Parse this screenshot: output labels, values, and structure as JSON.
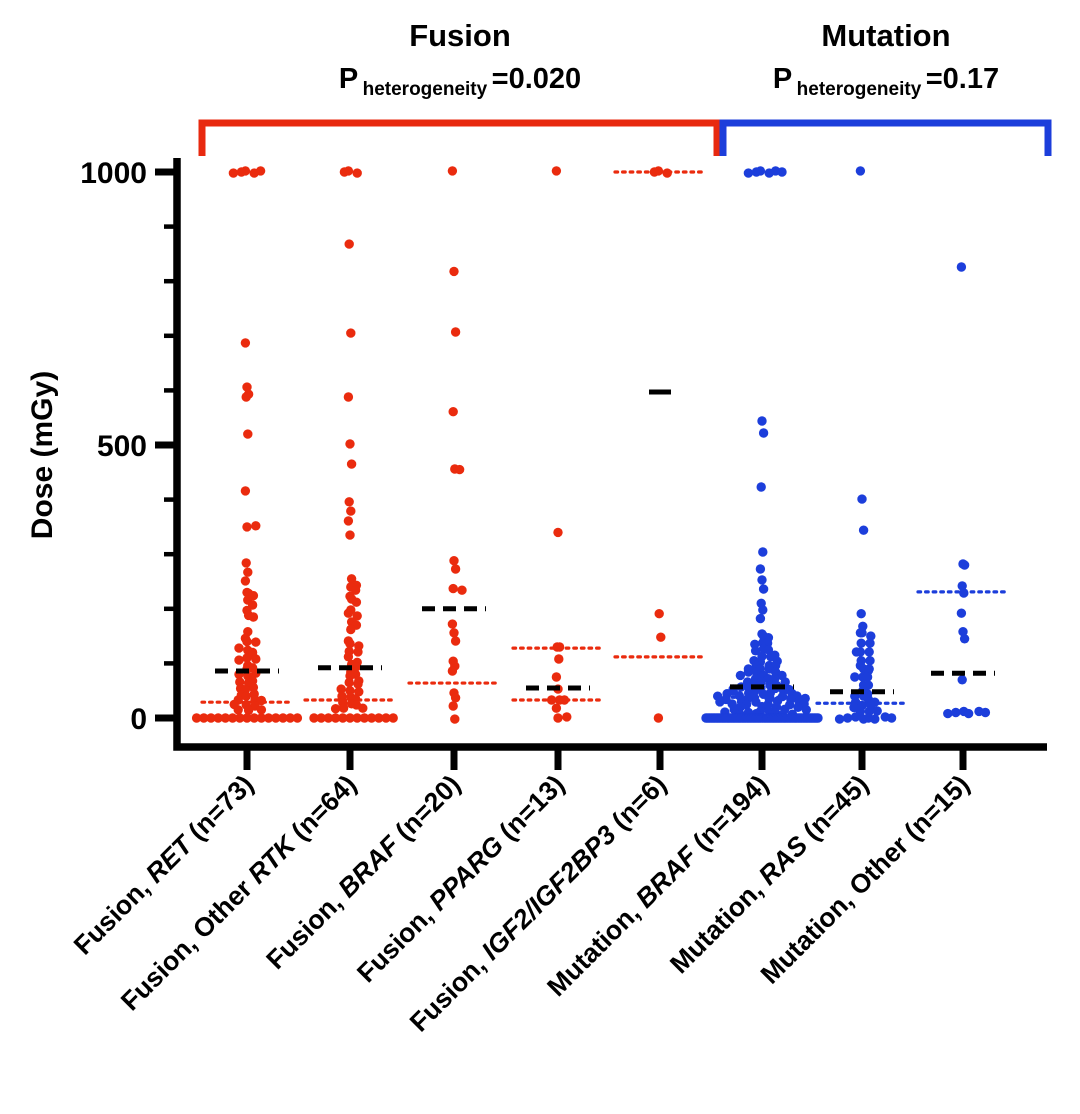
{
  "figure": {
    "background": "#ffffff",
    "axis_color": "#000000"
  },
  "chart_data": {
    "type": "scatter",
    "subtype": "beeswarm-dot-plot",
    "ylabel": "Dose (mGy)",
    "ylim": [
      0,
      1000
    ],
    "yticks": [
      "0",
      "500",
      "1000"
    ],
    "ytick_values": [
      0,
      500,
      1000
    ],
    "minor_tick_step": 100,
    "grid": false,
    "legend": "none",
    "groups": [
      {
        "title": "Fusion",
        "p_prefix": "P",
        "p_subscript": "heterogeneity",
        "p_equals_value": "=0.020",
        "color": "#E8290F",
        "category_indexes": [
          0,
          1,
          2,
          3,
          4
        ]
      },
      {
        "title": "Mutation",
        "p_prefix": "P",
        "p_subscript": "heterogeneity",
        "p_equals_value": "=0.17",
        "color": "#1C3EDB",
        "category_indexes": [
          5,
          6,
          7
        ]
      }
    ],
    "categories": [
      {
        "label": "Fusion, RET (n=73)",
        "label_parts": [
          {
            "text": "Fusion, ",
            "italic": false
          },
          {
            "text": "RET",
            "italic": true
          },
          {
            "text": " (n=73)",
            "italic": false
          }
        ],
        "n": 73,
        "color": "#EA2B0E",
        "group": "Fusion",
        "median_dashed": 86,
        "quartiles_dotted": [
          29
        ],
        "median_short": false,
        "values": [
          [
            1000,
            5
          ],
          687,
          604,
          595,
          588,
          518,
          418,
          [
            350,
            2
          ],
          286,
          267,
          249,
          232,
          228,
          222,
          218,
          207,
          195,
          190,
          185,
          156,
          148,
          140,
          137,
          130,
          124,
          118,
          112,
          108,
          104,
          98,
          92,
          88,
          84,
          80,
          75,
          70,
          66,
          62,
          58,
          54,
          50,
          46,
          42,
          38,
          35,
          33,
          30,
          27,
          24,
          20,
          17,
          15,
          12,
          [
            0,
            15
          ]
        ]
      },
      {
        "label": "Fusion, Other RTK (n=64)",
        "label_parts": [
          {
            "text": "Fusion, Other ",
            "italic": false
          },
          {
            "text": "RTK",
            "italic": true
          },
          {
            "text": " (n=64)",
            "italic": false
          }
        ],
        "n": 64,
        "color": "#EA2B0E",
        "group": "Fusion",
        "median_dashed": 92,
        "quartiles_dotted": [
          33
        ],
        "median_short": false,
        "values": [
          [
            1000,
            3
          ],
          866,
          707,
          588,
          500,
          467,
          396,
          377,
          363,
          335,
          253,
          245,
          240,
          232,
          225,
          218,
          210,
          200,
          192,
          185,
          178,
          170,
          160,
          143,
          136,
          130,
          124,
          121,
          110,
          104,
          98,
          92,
          86,
          80,
          75,
          70,
          65,
          60,
          55,
          50,
          46,
          42,
          38,
          33,
          30,
          26,
          22,
          20,
          18,
          15,
          [
            0,
            12
          ]
        ]
      },
      {
        "label": "Fusion, BRAF (n=20)",
        "label_parts": [
          {
            "text": "Fusion, ",
            "italic": false
          },
          {
            "text": "BRAF",
            "italic": true
          },
          {
            "text": " (n=20)",
            "italic": false
          }
        ],
        "n": 20,
        "color": "#EA2B0E",
        "group": "Fusion",
        "median_dashed": 200,
        "quartiles_dotted": [
          64
        ],
        "median_short": false,
        "values": [
          1000,
          820,
          707,
          559,
          458,
          455,
          286,
          275,
          237,
          232,
          174,
          156,
          139,
          106,
          95,
          84,
          48,
          37,
          20,
          0
        ]
      },
      {
        "label": "Fusion, PPARG (n=13)",
        "label_parts": [
          {
            "text": "Fusion, ",
            "italic": false
          },
          {
            "text": "PPARG",
            "italic": true
          },
          {
            "text": " (n=13)",
            "italic": false
          }
        ],
        "n": 13,
        "color": "#EA2B0E",
        "group": "Fusion",
        "median_dashed": 55,
        "quartiles_dotted": [
          33,
          128
        ],
        "median_short": false,
        "values": [
          1000,
          342,
          130,
          128,
          110,
          75,
          51,
          35,
          33,
          31,
          20,
          [
            0,
            2
          ]
        ]
      },
      {
        "label": "Fusion, IGF2/IGF2BP3 (n=6)",
        "label_parts": [
          {
            "text": "Fusion, ",
            "italic": false
          },
          {
            "text": "IGF2/IGF2BP3",
            "italic": true
          },
          {
            "text": " (n=6)",
            "italic": false
          }
        ],
        "n": 6,
        "color": "#EA2B0E",
        "group": "Fusion",
        "median_dashed": 597,
        "quartiles_dotted": [
          112,
          1000
        ],
        "median_short": true,
        "values": [
          [
            1000,
            3
          ],
          189,
          150,
          0
        ]
      },
      {
        "label": "Mutation, BRAF (n=194)",
        "label_parts": [
          {
            "text": "Mutation, ",
            "italic": false
          },
          {
            "text": "BRAF",
            "italic": true
          },
          {
            "text": " (n=194)",
            "italic": false
          }
        ],
        "n": 194,
        "color": "#1C3EDB",
        "group": "Mutation",
        "median_dashed": 57,
        "quartiles_dotted": [
          38
        ],
        "median_short": false,
        "values": [
          [
            1000,
            6
          ],
          542,
          524,
          423,
          302,
          275,
          253,
          234,
          212,
          198,
          180,
          156,
          150,
          145,
          140,
          137,
          133,
          129,
          125,
          121,
          117,
          113,
          110,
          107,
          104,
          101,
          98,
          96,
          94,
          92,
          90,
          88,
          86,
          84,
          82,
          80,
          78,
          76,
          74,
          72,
          70,
          68,
          66,
          64,
          62,
          60,
          58,
          57,
          56,
          55,
          54,
          53,
          52,
          51,
          50,
          49,
          48,
          47,
          46,
          45,
          44,
          43,
          42,
          41,
          40,
          39,
          38,
          37,
          36,
          35,
          34,
          33,
          32,
          31,
          30,
          29,
          28,
          27,
          26,
          25,
          24,
          23,
          22,
          21,
          20,
          19,
          18,
          17,
          16,
          15,
          12,
          11,
          10,
          9,
          8,
          7,
          6,
          5,
          [
            0,
            91
          ]
        ]
      },
      {
        "label": "Mutation, RAS (n=45)",
        "label_parts": [
          {
            "text": "Mutation, ",
            "italic": false
          },
          {
            "text": "RAS",
            "italic": true
          },
          {
            "text": " (n=45)",
            "italic": false
          }
        ],
        "n": 45,
        "color": "#1C3EDB",
        "group": "Mutation",
        "median_dashed": 48,
        "quartiles_dotted": [
          27
        ],
        "median_short": false,
        "values": [
          1000,
          403,
          344,
          189,
          170,
          156,
          154,
          152,
          137,
          135,
          123,
          121,
          119,
          107,
          105,
          94,
          92,
          90,
          85,
          77,
          75,
          73,
          62,
          60,
          48,
          46,
          40,
          38,
          36,
          29,
          27,
          25,
          23,
          17,
          15,
          12,
          10,
          [
            0,
            8
          ]
        ]
      },
      {
        "label": "Mutation, Other (n=15)",
        "label_parts": [
          {
            "text": "Mutation, Other (n=15)",
            "italic": false
          }
        ],
        "n": 15,
        "color": "#1C3EDB",
        "group": "Mutation",
        "median_dashed": 82,
        "quartiles_dotted": [
          231
        ],
        "median_short": false,
        "values": [
          824,
          284,
          280,
          240,
          231,
          192,
          156,
          147,
          70,
          [
            10,
            6
          ]
        ]
      }
    ]
  }
}
